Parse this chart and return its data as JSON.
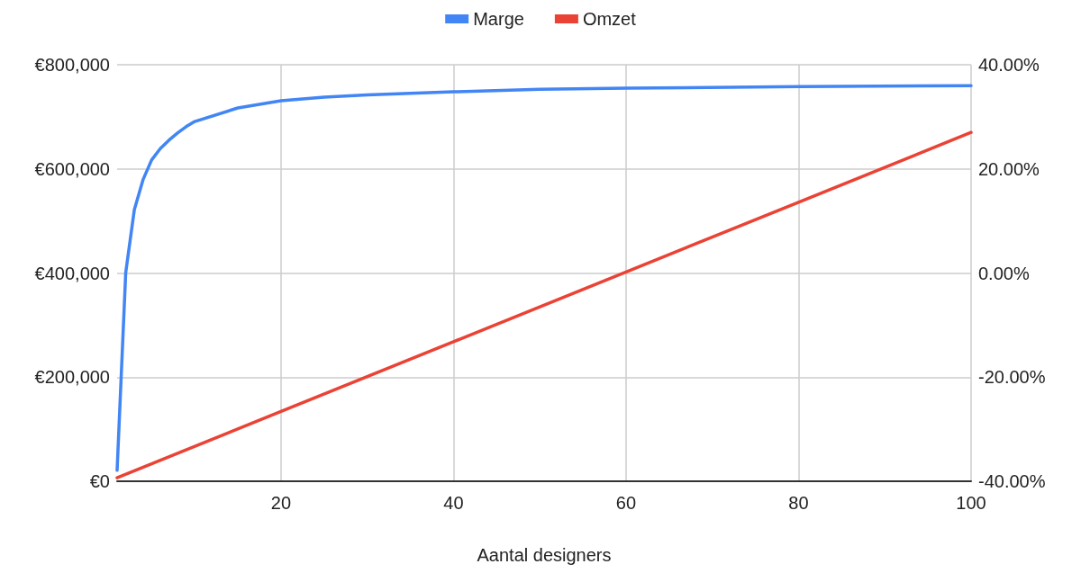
{
  "chart_data": {
    "type": "line",
    "xlabel": "Aantal designers",
    "legend": "top",
    "grid": true,
    "marker": "none",
    "line_style": "solid",
    "xlim": [
      1,
      100
    ],
    "xticks": [
      20,
      40,
      60,
      80,
      100
    ],
    "ylim": [
      0,
      800000
    ],
    "yticks": [
      {
        "value": 0,
        "label": "€0"
      },
      {
        "value": 200000,
        "label": "€200,000"
      },
      {
        "value": 400000,
        "label": "€400,000"
      },
      {
        "value": 600000,
        "label": "€600,000"
      },
      {
        "value": 800000,
        "label": "€800,000"
      }
    ],
    "y2lim": [
      -40,
      40
    ],
    "y2ticks": [
      {
        "value": -40,
        "label": "-40.00%"
      },
      {
        "value": -20,
        "label": "-20.00%"
      },
      {
        "value": 0,
        "label": "0.00%"
      },
      {
        "value": 20,
        "label": "20.00%"
      },
      {
        "value": 40,
        "label": "40.00%"
      }
    ],
    "series": [
      {
        "name": "Marge",
        "color": "#4285f4",
        "axis": "y2",
        "x": [
          1,
          2,
          3,
          4,
          5,
          6,
          7,
          8,
          9,
          10,
          15,
          20,
          25,
          30,
          40,
          50,
          60,
          80,
          100
        ],
        "values": [
          -37.9,
          0.1,
          12.2,
          17.9,
          21.7,
          23.9,
          25.5,
          26.9,
          28.1,
          29.1,
          31.7,
          33.1,
          33.8,
          34.2,
          34.8,
          35.3,
          35.5,
          35.8,
          36.0
        ]
      },
      {
        "name": "Omzet",
        "color": "#ea4335",
        "x": [
          1,
          20,
          40,
          60,
          80,
          100
        ],
        "values": [
          6700,
          134000,
          268000,
          402000,
          536000,
          670000
        ]
      }
    ]
  }
}
